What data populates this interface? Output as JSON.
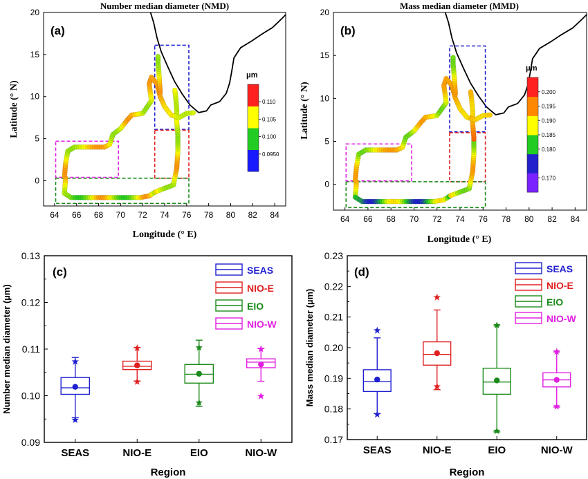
{
  "colors": {
    "SEAS": "#2020d0",
    "NIO-E": "#e02020",
    "EIO": "#1a8a1a",
    "NIO-W": "#e020e0",
    "coast": "#000000"
  },
  "chart_data": [
    {
      "id": "a",
      "type": "scatter",
      "panel_label": "(a)",
      "title": "Number median diameter (NMD)",
      "xlabel": "Longitude (° E)",
      "ylabel": "Latitude (° N)",
      "xlim": [
        63,
        85
      ],
      "ylim": [
        -3,
        20
      ],
      "xticks": [
        64,
        66,
        68,
        70,
        72,
        74,
        76,
        78,
        80,
        82,
        84
      ],
      "yticks": [
        0,
        5,
        10,
        15,
        20
      ],
      "colorbar": {
        "unit": "μm",
        "range": [
          0.09,
          0.115
        ],
        "ticks": [
          0.095,
          0.1,
          0.105,
          0.11
        ],
        "tick_labels": [
          "0.0950",
          "0.100",
          "0.105",
          "0.110"
        ],
        "colors": [
          "#1a1aff",
          "#22cc22",
          "#ffff00",
          "#ff2020"
        ]
      }
    },
    {
      "id": "b",
      "type": "scatter",
      "panel_label": "(b)",
      "title": "Mass median diameter (MMD)",
      "xlabel": "Longitude (° E)",
      "ylabel": "Latitude (° N)",
      "xlim": [
        63,
        85
      ],
      "ylim": [
        -3,
        20
      ],
      "xticks": [
        64,
        66,
        68,
        70,
        72,
        74,
        76,
        78,
        80,
        82,
        84
      ],
      "yticks": [
        0,
        5,
        10,
        15,
        20
      ],
      "colorbar": {
        "unit": "μm",
        "range": [
          0.165,
          0.205
        ],
        "ticks": [
          0.17,
          0.18,
          0.185,
          0.19,
          0.195,
          0.2
        ],
        "tick_labels": [
          "0.170",
          "0.180",
          "0.185",
          "0.190",
          "0.195",
          "0.200"
        ],
        "colors": [
          "#7a22ff",
          "#2222cc",
          "#22cc22",
          "#ffff00",
          "#ff8800",
          "#ff2020"
        ]
      }
    },
    {
      "id": "c",
      "type": "box",
      "panel_label": "(c)",
      "xlabel": "Region",
      "ylabel": "Number median diameter (µm)",
      "ylim": [
        0.09,
        0.13
      ],
      "yticks": [
        0.09,
        0.1,
        0.11,
        0.12,
        0.13
      ],
      "ytick_labels": [
        "0.09",
        "0.10",
        "0.11",
        "0.12",
        "0.13"
      ],
      "categories": [
        "SEAS",
        "NIO-E",
        "EIO",
        "NIO-W"
      ],
      "legend": [
        "SEAS",
        "NIO-E",
        "EIO",
        "NIO-W"
      ],
      "boxes": [
        {
          "name": "SEAS",
          "whisker_low": 0.0953,
          "q1": 0.1003,
          "median": 0.1017,
          "q3": 0.1039,
          "whisker_high": 0.1082,
          "mean": 0.1019,
          "outliers": [
            0.1073,
            0.0948
          ]
        },
        {
          "name": "NIO-E",
          "whisker_low": 0.1031,
          "q1": 0.1056,
          "median": 0.1063,
          "q3": 0.1074,
          "whisker_high": 0.1103,
          "mean": 0.1065,
          "outliers": [
            0.1102,
            0.103
          ]
        },
        {
          "name": "EIO",
          "whisker_low": 0.0977,
          "q1": 0.1027,
          "median": 0.1046,
          "q3": 0.1067,
          "whisker_high": 0.1119,
          "mean": 0.1047,
          "outliers": [
            0.1103,
            0.0985
          ]
        },
        {
          "name": "NIO-W",
          "whisker_low": 0.1031,
          "q1": 0.106,
          "median": 0.1072,
          "q3": 0.1079,
          "whisker_high": 0.1101,
          "mean": 0.1067,
          "outliers": [
            0.11,
            0.0999
          ]
        }
      ]
    },
    {
      "id": "d",
      "type": "box",
      "panel_label": "(d)",
      "xlabel": "Region",
      "ylabel": "Mass median diameter (µm)",
      "ylim": [
        0.17,
        0.23
      ],
      "yticks": [
        0.17,
        0.18,
        0.19,
        0.2,
        0.21,
        0.22,
        0.23
      ],
      "ytick_labels": [
        "0.17",
        "0.18",
        "0.19",
        "0.20",
        "0.21",
        "0.22",
        "0.23"
      ],
      "categories": [
        "SEAS",
        "NIO-E",
        "EIO",
        "NIO-W"
      ],
      "legend": [
        "SEAS",
        "NIO-E",
        "EIO",
        "NIO-W"
      ],
      "boxes": [
        {
          "name": "SEAS",
          "whisker_low": 0.1785,
          "q1": 0.1857,
          "median": 0.1889,
          "q3": 0.1928,
          "whisker_high": 0.2032,
          "mean": 0.1896,
          "outliers": [
            0.2056,
            0.1782
          ]
        },
        {
          "name": "NIO-E",
          "whisker_low": 0.1863,
          "q1": 0.1943,
          "median": 0.1978,
          "q3": 0.2019,
          "whisker_high": 0.2123,
          "mean": 0.1982,
          "outliers": [
            0.2164,
            0.1873
          ]
        },
        {
          "name": "EIO",
          "whisker_low": 0.1725,
          "q1": 0.1848,
          "median": 0.1888,
          "q3": 0.1933,
          "whisker_high": 0.2071,
          "mean": 0.1893,
          "outliers": [
            0.2073,
            0.1728
          ]
        },
        {
          "name": "NIO-W",
          "whisker_low": 0.1806,
          "q1": 0.1872,
          "median": 0.1895,
          "q3": 0.1918,
          "whisker_high": 0.1986,
          "mean": 0.1895,
          "outliers": [
            0.1987,
            0.1808
          ]
        }
      ]
    }
  ]
}
